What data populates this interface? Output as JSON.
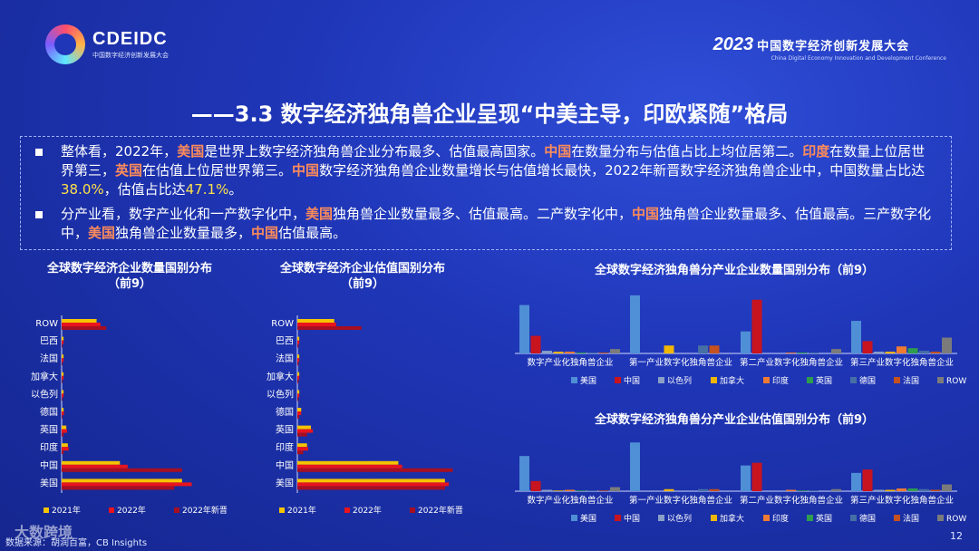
{
  "header": {
    "logo_name": "CDEIDC",
    "logo_sub": "中国数字经济创新发展大会",
    "conf_year": "2023",
    "conf_title": "中国数字经济创新发展大会",
    "conf_en": "China Digital Economy Innovation and Development Conference"
  },
  "title": "——3.3 数字经济独角兽企业呈现“中美主导，印欧紧随”格局",
  "summary": {
    "p1": [
      {
        "t": "整体看，2022年，"
      },
      {
        "t": "美国",
        "c": "hl"
      },
      {
        "t": "是世界上数字经济独角兽企业分布最多、估值最高国家。"
      },
      {
        "t": "中国",
        "c": "hl"
      },
      {
        "t": "在数量分布与估值占比上均位居第二。"
      },
      {
        "t": "印度",
        "c": "hl"
      },
      {
        "t": "在数量上位居世界第三，"
      },
      {
        "t": "英国",
        "c": "hl"
      },
      {
        "t": "在估值上位居世界第三。"
      },
      {
        "t": "中国",
        "c": "hl"
      },
      {
        "t": "数字经济独角兽企业数量增长与估值增长最快，2022年新晋数字经济独角兽企业中，中国数量占比达"
      },
      {
        "t": "38.0%",
        "c": "hly"
      },
      {
        "t": "，估值占比达"
      },
      {
        "t": "47.1%",
        "c": "hly"
      },
      {
        "t": "。"
      }
    ],
    "p2": [
      {
        "t": "分产业看，数字产业化和一产数字化中，"
      },
      {
        "t": "美国",
        "c": "hl"
      },
      {
        "t": "独角兽企业数量最多、估值最高。二产数字化中，"
      },
      {
        "t": "中国",
        "c": "hl"
      },
      {
        "t": "独角兽企业数量最多、估值最高。三产数字化中，"
      },
      {
        "t": "美国",
        "c": "hl"
      },
      {
        "t": "独角兽企业数量最多，"
      },
      {
        "t": "中国",
        "c": "hl"
      },
      {
        "t": "估值最高。"
      }
    ]
  },
  "chart_titles": {
    "c1": "全球数字经济企业数量国别分布\n（前9）",
    "c2": "全球数字经济企业估值国别分布\n（前9）",
    "c3": "全球数字经济独角兽分产业企业数量国别分布（前9）",
    "c4": "全球数字经济独角兽分产业企业估值国别分布（前9）"
  },
  "colors": {
    "y2021": "#f5c400",
    "y2022": "#e8141e",
    "new2022": "#a60f22",
    "countries": {
      "美国": "#4f8fd6",
      "中国": "#c8141e",
      "以色列": "#8aa0c6",
      "加拿大": "#f2b705",
      "印度": "#ef7a33",
      "英国": "#2e9e4e",
      "德国": "#466fa5",
      "法国": "#c4511f",
      "ROW": "#7b7b7b"
    }
  },
  "chart_data": [
    {
      "type": "bar",
      "orientation": "horizontal",
      "title": "全球数字经济企业数量国别分布（前9）",
      "categories": [
        "ROW",
        "巴西",
        "法国",
        "加拿大",
        "以色列",
        "德国",
        "英国",
        "印度",
        "中国",
        "美国"
      ],
      "series": [
        {
          "name": "2021年",
          "values": [
            90,
            5,
            5,
            5,
            5,
            5,
            12,
            16,
            150,
            310
          ]
        },
        {
          "name": "2022年",
          "values": [
            100,
            5,
            5,
            5,
            5,
            6,
            14,
            18,
            170,
            335
          ]
        },
        {
          "name": "2022年新晋",
          "values": [
            115,
            2,
            2,
            2,
            2,
            2,
            5,
            5,
            310,
            290
          ]
        }
      ]
    },
    {
      "type": "bar",
      "orientation": "horizontal",
      "title": "全球数字经济企业估值国别分布（前9）",
      "categories": [
        "ROW",
        "巴西",
        "法国",
        "加拿大",
        "以色列",
        "德国",
        "英国",
        "印度",
        "中国",
        "美国"
      ],
      "series": [
        {
          "name": "2021年",
          "values": [
            95,
            5,
            5,
            5,
            5,
            10,
            35,
            25,
            260,
            380
          ]
        },
        {
          "name": "2022年",
          "values": [
            100,
            5,
            5,
            5,
            5,
            10,
            40,
            28,
            270,
            390
          ]
        },
        {
          "name": "2022年新晋",
          "values": [
            165,
            3,
            3,
            3,
            3,
            5,
            25,
            15,
            400,
            380
          ]
        }
      ]
    },
    {
      "type": "bar",
      "title": "全球数字经济独角兽分产业企业数量国别分布（前9）",
      "categories": [
        "数字产业化独角兽企业",
        "第一产业数字化独角兽企业",
        "第二产业数字化独角兽企业",
        "第三产业数字化独角兽企业"
      ],
      "series": [
        {
          "name": "美国",
          "values": [
            55,
            66,
            25,
            37
          ]
        },
        {
          "name": "中国",
          "values": [
            20,
            0,
            61,
            14
          ]
        },
        {
          "name": "以色列",
          "values": [
            3,
            0,
            0,
            2
          ]
        },
        {
          "name": "加拿大",
          "values": [
            2,
            9,
            0,
            2
          ]
        },
        {
          "name": "印度",
          "values": [
            2,
            0,
            1,
            8
          ]
        },
        {
          "name": "英国",
          "values": [
            1,
            0,
            1,
            6
          ]
        },
        {
          "name": "德国",
          "values": [
            1,
            9,
            1,
            3
          ]
        },
        {
          "name": "法国",
          "values": [
            1,
            9,
            0,
            2
          ]
        },
        {
          "name": "ROW",
          "values": [
            5,
            0,
            5,
            18
          ]
        }
      ]
    },
    {
      "type": "bar",
      "title": "全球数字经济独角兽分产业企业估值国别分布（前9）",
      "categories": [
        "数字产业化独角兽企业",
        "第一产业数字化独角兽企业",
        "第二产业数字化独角兽企业",
        "第三产业数字化独角兽企业"
      ],
      "series": [
        {
          "name": "美国",
          "values": [
            52,
            72,
            38,
            27
          ]
        },
        {
          "name": "中国",
          "values": [
            15,
            0,
            42,
            32
          ]
        },
        {
          "name": "以色列",
          "values": [
            2,
            0,
            0,
            2
          ]
        },
        {
          "name": "加拿大",
          "values": [
            1,
            3,
            0,
            2
          ]
        },
        {
          "name": "印度",
          "values": [
            2,
            0,
            2,
            4
          ]
        },
        {
          "name": "英国",
          "values": [
            1,
            0,
            1,
            4
          ]
        },
        {
          "name": "德国",
          "values": [
            1,
            3,
            1,
            3
          ]
        },
        {
          "name": "法国",
          "values": [
            1,
            3,
            0,
            2
          ]
        },
        {
          "name": "ROW",
          "values": [
            6,
            0,
            3,
            10
          ]
        }
      ]
    }
  ],
  "footer": {
    "source": "数据来源：胡润百富，CB Insights",
    "watermark": "大数跨境",
    "page": "12"
  }
}
